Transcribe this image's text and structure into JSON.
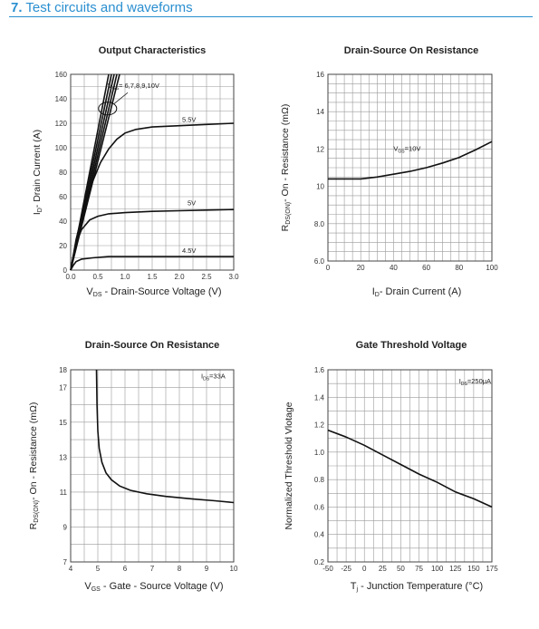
{
  "section": {
    "number": "7.",
    "title": "Test circuits and waveforms"
  },
  "colors": {
    "accent": "#2a8fd0",
    "grid": "#9a9a9a",
    "curve": "#111111"
  },
  "chart_data": [
    {
      "type": "line",
      "title": "Output Characteristics",
      "xlabel": "V DS - Drain-Source Voltage (V)",
      "xlabel_main": "V",
      "xlabel_sub": "DS",
      "xlabel_rest": " - Drain-Source Voltage (V)",
      "ylabel_main": "I",
      "ylabel_sub": "D",
      "ylabel_rest": "- Drain Current (A)",
      "xlim": [
        0,
        3.0
      ],
      "ylim": [
        0,
        160
      ],
      "xticks": [
        "0.0",
        "0.5",
        "1.0",
        "1.5",
        "2.0",
        "2.5",
        "3.0"
      ],
      "yticks": [
        "0",
        "20",
        "40",
        "60",
        "80",
        "100",
        "120",
        "140",
        "160"
      ],
      "x_grid_step": 0.25,
      "y_grid_step": 10,
      "annotations": [
        {
          "text": "V",
          "sub": "GS",
          "rest": "= 6,7,8,9,10V",
          "x": 0.68,
          "y": 149
        },
        {
          "text": "5.5V",
          "x": 2.05,
          "y": 121
        },
        {
          "text": "5V",
          "x": 2.15,
          "y": 53
        },
        {
          "text": "4.5V",
          "x": 2.05,
          "y": 14
        }
      ],
      "series": [
        {
          "values_x": [
            0,
            0.9
          ],
          "values_y": [
            0,
            160
          ]
        },
        {
          "values_x": [
            0,
            0.85
          ],
          "values_y": [
            0,
            160
          ]
        },
        {
          "values_x": [
            0,
            0.8
          ],
          "values_y": [
            0,
            160
          ]
        },
        {
          "values_x": [
            0,
            0.75
          ],
          "values_y": [
            0,
            160
          ]
        },
        {
          "values_x": [
            0,
            0.7
          ],
          "values_y": [
            0,
            160
          ]
        },
        {
          "values_x": [
            0,
            0.1,
            0.25,
            0.4,
            0.55,
            0.7,
            0.85,
            1.0,
            1.2,
            1.5,
            2.0,
            2.5,
            3.0
          ],
          "values_y": [
            0,
            25,
            52,
            72,
            88,
            99,
            107,
            112,
            115,
            117,
            118,
            119,
            120
          ]
        },
        {
          "values_x": [
            0,
            0.05,
            0.1,
            0.2,
            0.35,
            0.5,
            0.7,
            1.0,
            1.5,
            2.0,
            2.5,
            3.0
          ],
          "values_y": [
            0,
            12,
            22,
            33,
            41,
            44,
            46,
            47,
            48,
            48.5,
            49,
            49.5
          ]
        },
        {
          "values_x": [
            0,
            0.05,
            0.1,
            0.2,
            0.4,
            0.7,
            1.0,
            1.5,
            2.0,
            2.5,
            3.0
          ],
          "values_y": [
            0,
            4,
            7,
            9,
            10,
            11,
            11,
            11,
            11,
            11,
            11
          ]
        }
      ]
    },
    {
      "type": "line",
      "title": "Drain-Source On Resistance",
      "xlabel_main": "I",
      "xlabel_sub": "D",
      "xlabel_rest": "- Drain Current (A)",
      "ylabel_main": "R",
      "ylabel_sub": "DS(ON)",
      "ylabel_rest": "- On - Resistance (mΩ)",
      "xlim": [
        0,
        100
      ],
      "ylim": [
        6,
        16
      ],
      "xticks": [
        "0",
        "20",
        "40",
        "60",
        "80",
        "100"
      ],
      "yticks": [
        "6.0",
        "8.0",
        "10",
        "12",
        "14",
        "16"
      ],
      "x_grid_step": 5,
      "y_grid_step": 0.5,
      "annotations": [
        {
          "text": "V",
          "sub": "GS",
          "rest": "=10V",
          "x": 40,
          "y": 11.9
        }
      ],
      "series": [
        {
          "values_x": [
            0,
            10,
            20,
            30,
            40,
            50,
            60,
            70,
            80,
            90,
            100
          ],
          "values_y": [
            10.4,
            10.4,
            10.4,
            10.5,
            10.65,
            10.8,
            11.0,
            11.25,
            11.55,
            11.95,
            12.4
          ]
        }
      ]
    },
    {
      "type": "line",
      "title": "Drain-Source On Resistance",
      "xlabel_main": "V",
      "xlabel_sub": "GS",
      "xlabel_rest": " - Gate - Source Voltage (V)",
      "ylabel_main": "R",
      "ylabel_sub": "DS(ON)",
      "ylabel_rest": "- On - Resistance (mΩ)",
      "xlim": [
        4,
        10
      ],
      "ylim": [
        7,
        18
      ],
      "xticks": [
        "4",
        "5",
        "6",
        "7",
        "8",
        "9",
        "10"
      ],
      "yticks": [
        "7",
        "9",
        "11",
        "13",
        "15",
        "17",
        "18"
      ],
      "ytick_values": [
        7,
        9,
        11,
        13,
        15,
        17,
        18
      ],
      "x_grid_step": 0.5,
      "y_grid_step": 1,
      "annotations": [
        {
          "text": "I",
          "sub": "DS",
          "rest": "=33A",
          "x": 8.8,
          "y": 17.5
        }
      ],
      "series": [
        {
          "values_x": [
            4.95,
            4.97,
            5.0,
            5.05,
            5.15,
            5.3,
            5.5,
            5.8,
            6.2,
            6.8,
            7.5,
            8.5,
            9.3,
            10.0
          ],
          "values_y": [
            18,
            16,
            14.5,
            13.5,
            12.7,
            12.1,
            11.7,
            11.35,
            11.1,
            10.9,
            10.75,
            10.6,
            10.5,
            10.4
          ]
        }
      ]
    },
    {
      "type": "line",
      "title": "Gate Threshold Voltage",
      "xlabel_main": "T",
      "xlabel_sub": "j",
      "xlabel_rest": " - Junction Temperature (°C)",
      "ylabel_main": "Normalized Threshold Vlotage",
      "ylabel_sub": "",
      "ylabel_rest": "",
      "xlim": [
        -50,
        175
      ],
      "ylim": [
        0.2,
        1.6
      ],
      "xticks": [
        "-50",
        "-25",
        "0",
        "25",
        "50",
        "75",
        "100",
        "125",
        "150",
        "175"
      ],
      "yticks": [
        "0.2",
        "0.4",
        "0.6",
        "0.8",
        "1.0",
        "1.2",
        "1.4",
        "1.6"
      ],
      "x_grid_step": 12.5,
      "y_grid_step": 0.1,
      "annotations": [
        {
          "text": "I",
          "sub": "DS",
          "rest": "=250μA",
          "x": 130,
          "y": 1.5
        }
      ],
      "series": [
        {
          "values_x": [
            -50,
            -25,
            0,
            25,
            50,
            75,
            100,
            125,
            150,
            175
          ],
          "values_y": [
            1.16,
            1.11,
            1.05,
            0.98,
            0.91,
            0.84,
            0.78,
            0.71,
            0.66,
            0.6
          ]
        }
      ]
    }
  ]
}
